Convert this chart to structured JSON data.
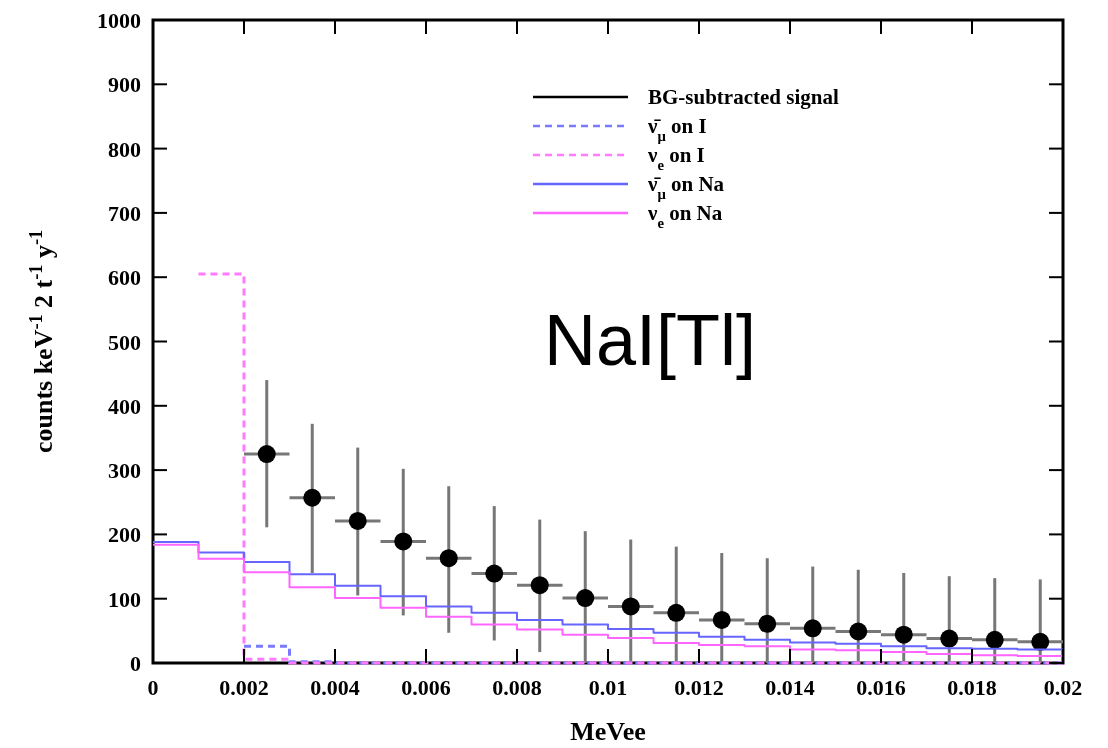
{
  "chart_data": {
    "type": "histogram",
    "xlabel": "MeVee",
    "ylabel": "counts keV$^{-1}$ 2 t$^{-1}$ y$^{-1}$",
    "bins": [
      0,
      0.001,
      0.002,
      0.003,
      0.004,
      0.005,
      0.006,
      0.007,
      0.008,
      0.009,
      0.01,
      0.011,
      0.012,
      0.013,
      0.014,
      0.015,
      0.016,
      0.017,
      0.018,
      0.019,
      0.02
    ],
    "series": [
      {
        "name": "BG-subtracted signal",
        "type": "scatter",
        "color": "#000000",
        "marker": "circle",
        "x": [
          0.0025,
          0.0035,
          0.0045,
          0.0055,
          0.0065,
          0.0075,
          0.0085,
          0.0095,
          0.0105,
          0.0115,
          0.0125,
          0.0135,
          0.0145,
          0.0155,
          0.0165,
          0.0175,
          0.0185,
          0.0195
        ],
        "values": [
          325,
          257,
          221,
          189,
          163,
          139,
          121,
          101,
          88,
          78,
          67,
          61,
          54,
          49,
          44,
          38,
          36,
          33
        ],
        "errors": [
          [
            211,
            440
          ],
          [
            140,
            372
          ],
          [
            105,
            335
          ],
          [
            74,
            302
          ],
          [
            47,
            275
          ],
          [
            35,
            244
          ],
          [
            17,
            223
          ],
          [
            0,
            205
          ],
          [
            0,
            192
          ],
          [
            0,
            181
          ],
          [
            0,
            171
          ],
          [
            0,
            163
          ],
          [
            0,
            150
          ],
          [
            0,
            145
          ],
          [
            0,
            140
          ],
          [
            0,
            135
          ],
          [
            0,
            132
          ],
          [
            0,
            130
          ]
        ],
        "xerrors": [
          0.0005,
          0.0005,
          0.0005,
          0.0005,
          0.0005,
          0.0005,
          0.0005,
          0.0005,
          0.0005,
          0.0005,
          0.0005,
          0.0005,
          0.0005,
          0.0005,
          0.0005,
          0.0005,
          0.0005,
          0.0005
        ]
      },
      {
        "name": "ν̄$_{μ}$ on I",
        "type": "step",
        "color": "#7a7aff",
        "line_style": "dashed",
        "x": [
          0.002,
          0.003,
          0.004,
          0.005,
          0.006,
          0.007,
          0.008,
          0.009,
          0.01,
          0.011,
          0.012,
          0.013,
          0.014,
          0.015,
          0.016,
          0.017,
          0.018,
          0.019,
          0.02
        ],
        "values": [
          26,
          2,
          0,
          0,
          0,
          0,
          0,
          0,
          0,
          0,
          0,
          0,
          0,
          0,
          0,
          0,
          0,
          0,
          0
        ]
      },
      {
        "name": "ν$_{e}$ on I",
        "type": "step",
        "color": "#ff7aff",
        "line_style": "dashed",
        "x": [
          0.001,
          0.002,
          0.003,
          0.004,
          0.005,
          0.006,
          0.007,
          0.008,
          0.009,
          0.01,
          0.011,
          0.012,
          0.013,
          0.014,
          0.015,
          0.016,
          0.017,
          0.018,
          0.019,
          0.02
        ],
        "values": [
          605,
          6,
          0,
          0,
          0,
          0,
          0,
          0,
          0,
          0,
          0,
          0,
          0,
          0,
          0,
          0,
          0,
          0,
          0,
          0
        ]
      },
      {
        "name": "ν̄$_{μ}$ on Na",
        "color": "#6666ff",
        "line_style": "solid",
        "values": [
          188,
          172,
          157,
          138,
          120,
          104,
          88,
          78,
          67,
          60,
          53,
          47,
          41,
          36,
          32,
          30,
          26,
          23,
          22,
          21
        ]
      },
      {
        "name": "ν$_{e}$ on Na",
        "color": "#ff66ff",
        "line_style": "solid",
        "values": [
          184,
          162,
          141,
          118,
          101,
          86,
          72,
          60,
          52,
          44,
          39,
          31,
          28,
          26,
          21,
          20,
          17,
          14,
          12,
          11
        ]
      }
    ],
    "xlim": [
      0,
      0.02
    ],
    "ylim": [
      0,
      1000
    ],
    "xticks": [
      0,
      0.002,
      0.004,
      0.006,
      0.008,
      0.01,
      0.012,
      0.014,
      0.016,
      0.018,
      0.02
    ],
    "yticks": [
      0,
      100,
      200,
      300,
      400,
      500,
      600,
      700,
      800,
      900,
      1000
    ],
    "legend": "top right",
    "annotations": [
      "NaI[Tl]"
    ]
  }
}
